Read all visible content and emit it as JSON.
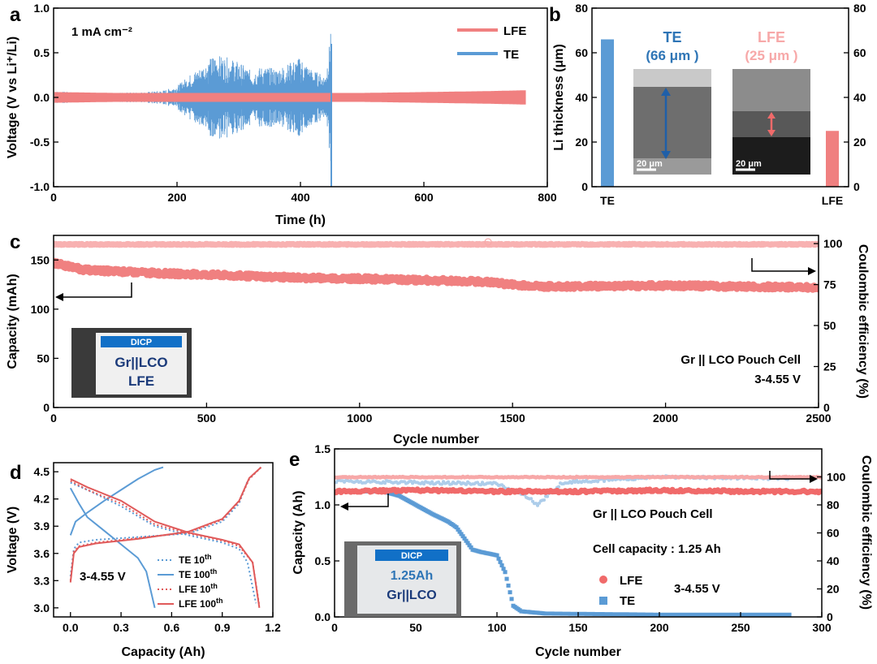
{
  "colors": {
    "lfe": "#f08080",
    "te": "#5b9bd5",
    "lfe_light": "#f7a8a8",
    "te_title": "#2e75b6"
  },
  "chart_data": [
    {
      "panel": "a",
      "type": "line",
      "xlabel": "Time (h)",
      "ylabel": "Voltage (V vs Li⁺/Li)",
      "xlim": [
        0,
        800
      ],
      "ylim": [
        -1.0,
        1.0
      ],
      "xticks": [
        "0",
        "200",
        "400",
        "600",
        "800"
      ],
      "yticks": [
        "-1.0",
        "-0.5",
        "0.0",
        "0.5",
        "1.0"
      ],
      "annotation": "1 mA cm⁻²",
      "legend": [
        "LFE",
        "TE"
      ],
      "series": [
        {
          "name": "TE",
          "color": "#5b9bd5",
          "end_time": 450,
          "envelope": [
            [
              0,
              0.07
            ],
            [
              50,
              0.05
            ],
            [
              100,
              0.05
            ],
            [
              150,
              0.06
            ],
            [
              180,
              0.08
            ],
            [
              200,
              0.13
            ],
            [
              220,
              0.25
            ],
            [
              240,
              0.35
            ],
            [
              260,
              0.48
            ],
            [
              280,
              0.45
            ],
            [
              300,
              0.4
            ],
            [
              320,
              0.3
            ],
            [
              340,
              0.35
            ],
            [
              360,
              0.32
            ],
            [
              380,
              0.38
            ],
            [
              400,
              0.45
            ],
            [
              420,
              0.3
            ],
            [
              440,
              0.25
            ],
            [
              447,
              0.6
            ],
            [
              450,
              1.0
            ]
          ]
        },
        {
          "name": "LFE",
          "color": "#f08080",
          "end_time": 765,
          "envelope": [
            [
              0,
              0.06
            ],
            [
              100,
              0.05
            ],
            [
              300,
              0.05
            ],
            [
              500,
              0.05
            ],
            [
              700,
              0.07
            ],
            [
              765,
              0.08
            ]
          ]
        }
      ]
    },
    {
      "panel": "b",
      "type": "bar",
      "ylabel": "Li thickness (μm)",
      "categories": [
        "TE",
        "LFE"
      ],
      "values": [
        66,
        25
      ],
      "ylim": [
        0,
        80
      ],
      "yticks": [
        "0",
        "20",
        "40",
        "60",
        "80"
      ],
      "yticks_right": [
        "0",
        "20",
        "40",
        "60",
        "80"
      ],
      "insets": [
        {
          "title": "TE",
          "value_label": "(66 μm )",
          "scale": "20 μm"
        },
        {
          "title": "LFE",
          "value_label": "(25 μm )",
          "scale": "20 μm"
        }
      ]
    },
    {
      "panel": "c",
      "type": "scatter",
      "xlabel": "Cycle number",
      "ylabel": "Capacity (mAh)",
      "ylabel_right": "Coulombic efficiency (%)",
      "xlim": [
        0,
        2500
      ],
      "ylim": [
        0,
        175
      ],
      "ylim_right": [
        0,
        105
      ],
      "xticks": [
        "0",
        "500",
        "1000",
        "1500",
        "2000",
        "2500"
      ],
      "yticks": [
        "0",
        "50",
        "100",
        "150"
      ],
      "yticks_right": [
        "0",
        "25",
        "50",
        "75",
        "100"
      ],
      "capacity_trend": [
        [
          0,
          147
        ],
        [
          100,
          140
        ],
        [
          300,
          137
        ],
        [
          500,
          135
        ],
        [
          800,
          132
        ],
        [
          1000,
          131
        ],
        [
          1400,
          128
        ],
        [
          1500,
          125
        ],
        [
          1600,
          123
        ],
        [
          2000,
          124
        ],
        [
          2500,
          122
        ]
      ],
      "ce_percent": 99.5,
      "annotation_lines": [
        "Gr || LCO Pouch Cell",
        "3-4.55 V"
      ],
      "inset": {
        "header": "DICP",
        "line1": "Gr||LCO",
        "line2": "LFE"
      }
    },
    {
      "panel": "d",
      "type": "line",
      "xlabel": "Capacity (Ah)",
      "ylabel": "Voltage (V)",
      "xlim": [
        -0.1,
        1.2
      ],
      "ylim": [
        2.9,
        4.6
      ],
      "xticks": [
        "0.0",
        "0.3",
        "0.6",
        "0.9",
        "1.2"
      ],
      "yticks": [
        "3.0",
        "3.3",
        "3.6",
        "3.9",
        "4.2",
        "4.5"
      ],
      "annotation": "3-4.55 V",
      "legend": [
        {
          "name": "TE 10",
          "sup": "th",
          "style": "dot",
          "color": "#5b9bd5"
        },
        {
          "name": "TE 100",
          "sup": "th",
          "style": "solid",
          "color": "#5b9bd5"
        },
        {
          "name": "LFE 10",
          "sup": "th",
          "style": "dot",
          "color": "#e05a5a"
        },
        {
          "name": "LFE 100",
          "sup": "th",
          "style": "solid",
          "color": "#e05a5a"
        }
      ],
      "series": [
        {
          "name": "TE 10th charge",
          "style": "dot",
          "color": "#5b9bd5",
          "points": [
            [
              0,
              3.35
            ],
            [
              0.02,
              3.65
            ],
            [
              0.05,
              3.72
            ],
            [
              0.15,
              3.75
            ],
            [
              0.4,
              3.78
            ],
            [
              0.7,
              3.82
            ],
            [
              0.9,
              3.95
            ],
            [
              1.0,
              4.15
            ],
            [
              1.05,
              4.4
            ],
            [
              1.13,
              4.55
            ]
          ]
        },
        {
          "name": "TE 10th discharge",
          "style": "dot",
          "color": "#5b9bd5",
          "points": [
            [
              0,
              4.38
            ],
            [
              0.1,
              4.3
            ],
            [
              0.3,
              4.12
            ],
            [
              0.5,
              3.9
            ],
            [
              0.7,
              3.8
            ],
            [
              0.9,
              3.72
            ],
            [
              1.0,
              3.65
            ],
            [
              1.05,
              3.5
            ],
            [
              1.1,
              3.05
            ]
          ]
        },
        {
          "name": "TE 100th charge",
          "style": "solid",
          "color": "#5b9bd5",
          "points": [
            [
              0,
              3.8
            ],
            [
              0.03,
              3.95
            ],
            [
              0.1,
              4.05
            ],
            [
              0.2,
              4.18
            ],
            [
              0.3,
              4.3
            ],
            [
              0.4,
              4.42
            ],
            [
              0.5,
              4.52
            ],
            [
              0.55,
              4.55
            ]
          ]
        },
        {
          "name": "TE 100th discharge",
          "style": "solid",
          "color": "#5b9bd5",
          "points": [
            [
              0,
              4.32
            ],
            [
              0.05,
              4.15
            ],
            [
              0.1,
              4.0
            ],
            [
              0.2,
              3.85
            ],
            [
              0.3,
              3.7
            ],
            [
              0.4,
              3.55
            ],
            [
              0.45,
              3.4
            ],
            [
              0.5,
              3.0
            ]
          ]
        },
        {
          "name": "LFE 10th charge",
          "style": "dot",
          "color": "#e05a5a",
          "points": [
            [
              0,
              3.3
            ],
            [
              0.02,
              3.62
            ],
            [
              0.05,
              3.68
            ],
            [
              0.15,
              3.72
            ],
            [
              0.4,
              3.77
            ],
            [
              0.7,
              3.83
            ],
            [
              0.9,
              3.97
            ],
            [
              1.0,
              4.17
            ],
            [
              1.06,
              4.42
            ],
            [
              1.13,
              4.55
            ]
          ]
        },
        {
          "name": "LFE 10th discharge",
          "style": "dot",
          "color": "#e05a5a",
          "points": [
            [
              0,
              4.4
            ],
            [
              0.1,
              4.3
            ],
            [
              0.3,
              4.15
            ],
            [
              0.5,
              3.92
            ],
            [
              0.7,
              3.82
            ],
            [
              0.9,
              3.74
            ],
            [
              1.0,
              3.68
            ],
            [
              1.08,
              3.5
            ],
            [
              1.12,
              3.02
            ]
          ]
        },
        {
          "name": "LFE 100th charge",
          "style": "solid",
          "color": "#e05a5a",
          "points": [
            [
              0,
              3.28
            ],
            [
              0.02,
              3.6
            ],
            [
              0.05,
              3.67
            ],
            [
              0.15,
              3.71
            ],
            [
              0.4,
              3.76
            ],
            [
              0.7,
              3.84
            ],
            [
              0.9,
              3.98
            ],
            [
              1.0,
              4.18
            ],
            [
              1.06,
              4.43
            ],
            [
              1.13,
              4.55
            ]
          ]
        },
        {
          "name": "LFE 100th discharge",
          "style": "solid",
          "color": "#e05a5a",
          "points": [
            [
              0,
              4.42
            ],
            [
              0.1,
              4.33
            ],
            [
              0.3,
              4.18
            ],
            [
              0.5,
              3.95
            ],
            [
              0.7,
              3.83
            ],
            [
              0.9,
              3.75
            ],
            [
              1.0,
              3.7
            ],
            [
              1.08,
              3.5
            ],
            [
              1.12,
              3.0
            ]
          ]
        }
      ]
    },
    {
      "panel": "e",
      "type": "scatter",
      "xlabel": "Cycle number",
      "ylabel": "Capacity (Ah)",
      "ylabel_right": "Coulombic efficiency (%)",
      "xlim": [
        0,
        300
      ],
      "ylim": [
        0,
        1.5
      ],
      "ylim_right": [
        0,
        120
      ],
      "xticks": [
        "0",
        "50",
        "100",
        "150",
        "200",
        "250",
        "300"
      ],
      "yticks": [
        "0.0",
        "0.5",
        "1.0",
        "1.5"
      ],
      "yticks_right": [
        "0",
        "20",
        "40",
        "60",
        "80",
        "100"
      ],
      "legend": [
        "LFE",
        "TE"
      ],
      "annotation_lines": [
        "Gr || LCO Pouch Cell",
        "Cell capacity : 1.25 Ah",
        "3-4.55 V"
      ],
      "te_capacity": [
        [
          0,
          1.12
        ],
        [
          30,
          1.12
        ],
        [
          40,
          1.08
        ],
        [
          50,
          1.0
        ],
        [
          60,
          0.92
        ],
        [
          70,
          0.85
        ],
        [
          75,
          0.8
        ],
        [
          80,
          0.7
        ],
        [
          85,
          0.6
        ],
        [
          90,
          0.58
        ],
        [
          100,
          0.55
        ],
        [
          105,
          0.4
        ],
        [
          110,
          0.1
        ],
        [
          115,
          0.05
        ],
        [
          130,
          0.03
        ],
        [
          200,
          0.02
        ],
        [
          280,
          0.02
        ]
      ],
      "lfe_capacity": [
        [
          0,
          1.12
        ],
        [
          50,
          1.13
        ],
        [
          100,
          1.12
        ],
        [
          150,
          1.12
        ],
        [
          200,
          1.13
        ],
        [
          250,
          1.12
        ],
        [
          300,
          1.12
        ]
      ],
      "te_ce": [
        [
          0,
          97
        ],
        [
          100,
          95
        ],
        [
          120,
          85
        ],
        [
          125,
          80
        ],
        [
          140,
          96
        ],
        [
          200,
          100
        ],
        [
          280,
          99
        ]
      ],
      "lfe_ce_percent": 99.8,
      "inset": {
        "header": "DICP",
        "line1": "1.25Ah",
        "line2": "Gr||LCO"
      }
    }
  ],
  "panel_labels": [
    "a",
    "b",
    "c",
    "d",
    "e"
  ]
}
